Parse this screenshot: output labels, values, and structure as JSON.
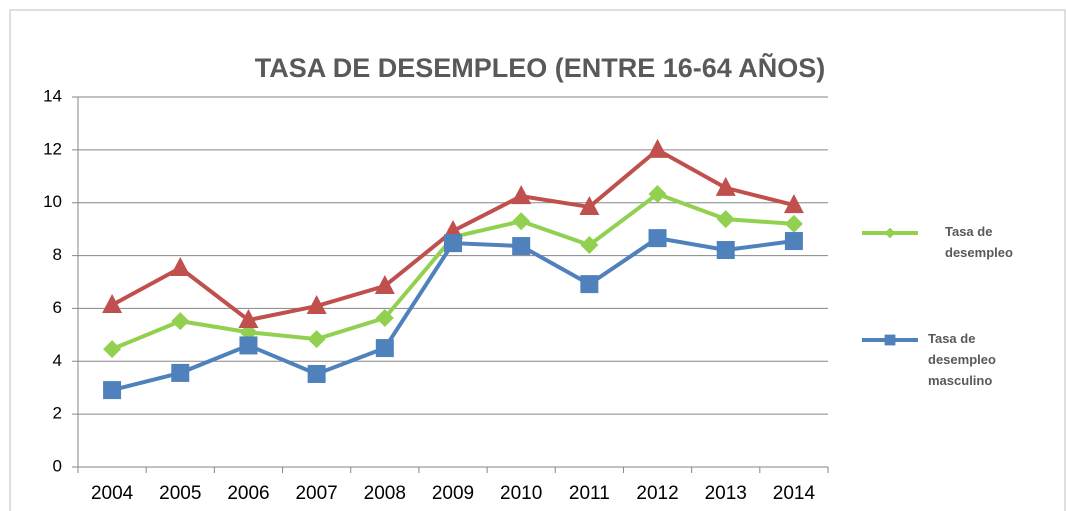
{
  "chart_data": {
    "type": "line",
    "title": "TASA DE DESEMPLEO (ENTRE 16-64 AÑOS)",
    "categories": [
      "2004",
      "2005",
      "2006",
      "2007",
      "2008",
      "2009",
      "2010",
      "2011",
      "2012",
      "2013",
      "2014"
    ],
    "series": [
      {
        "name": "Tasa de desempleo",
        "color": "#92d050",
        "marker": "diamond",
        "values": [
          4.46,
          5.52,
          5.1,
          4.84,
          5.64,
          8.7,
          9.3,
          8.4,
          10.33,
          9.38,
          9.2
        ]
      },
      {
        "color": "#c0504d",
        "marker": "triangle",
        "values": [
          6.13,
          7.53,
          5.56,
          6.09,
          6.85,
          8.93,
          10.25,
          9.84,
          12.0,
          10.56,
          9.91
        ]
      },
      {
        "name": "Tasa de desempleo masculino",
        "color": "#4f81bd",
        "marker": "square",
        "values": [
          2.91,
          3.56,
          4.6,
          3.52,
          4.5,
          8.47,
          8.36,
          6.92,
          8.66,
          8.21,
          8.55
        ]
      }
    ],
    "ylim": [
      0,
      14
    ],
    "yticks": [
      0,
      2,
      4,
      6,
      8,
      10,
      12,
      14
    ],
    "grid": true,
    "legend": "right"
  }
}
